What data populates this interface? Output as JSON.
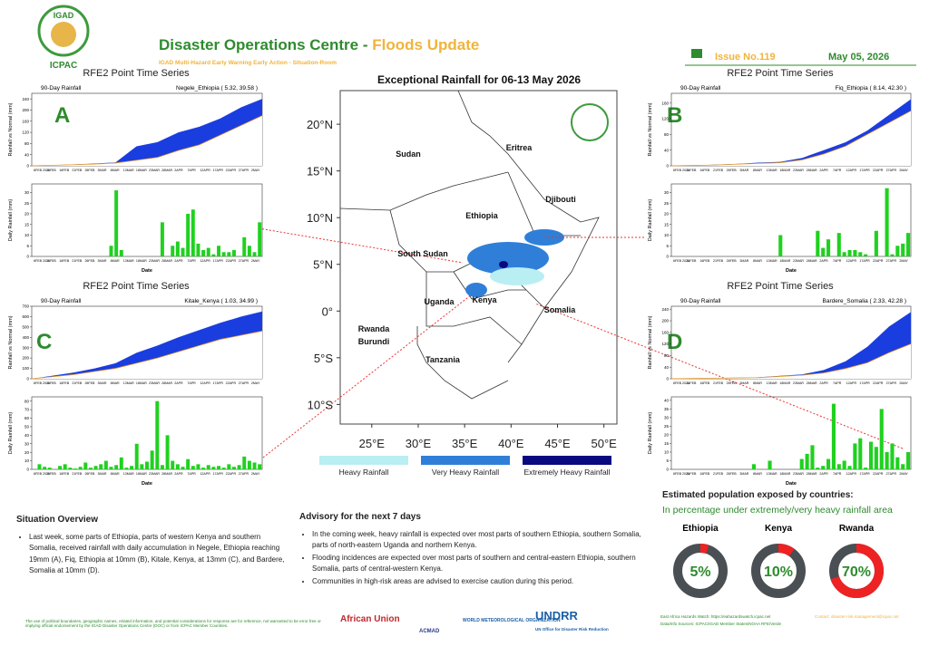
{
  "header": {
    "logo_top": "IGAD",
    "logo_bottom": "ICPAC",
    "title_main": "Disaster Operations Centre - ",
    "title_highlight": "Floods Update",
    "subtitle": "IGAD Multi-Hazard Early Warning Early Action - Situation-Room",
    "issue": "Issue No.119",
    "date": "May 05, 2026"
  },
  "date_ticks": [
    "6FEB 2026",
    "11FEB",
    "16FEB",
    "21FEB",
    "26FEB",
    "3MAR",
    "8MAR",
    "13MAR",
    "18MAR",
    "23MAR",
    "28MAR",
    "2APR",
    "7APR",
    "12APR",
    "17APR",
    "22APR",
    "27APR",
    "2MAY"
  ],
  "panels": [
    {
      "letter": "A",
      "header": "RFE2 Point Time Series",
      "subheader": "90-Day Rainfall",
      "location": "Negele_Ethiopia ( 5.32, 39.58 )",
      "cum_ylabel": "Rainfall vs Normal (mm)",
      "cum_ylim": [
        0,
        260
      ],
      "cum_yticks": [
        0,
        40,
        80,
        120,
        160,
        200,
        240
      ],
      "observed": [
        0,
        2,
        5,
        8,
        12,
        70,
        85,
        120,
        140,
        170,
        210,
        240
      ],
      "normal": [
        0,
        2,
        4,
        6,
        10,
        20,
        30,
        55,
        75,
        110,
        145,
        180
      ],
      "daily_ylabel": "Daily Rainfall (mm)",
      "daily_ylim": [
        0,
        34
      ],
      "daily_yticks": [
        0,
        5,
        10,
        15,
        20,
        25,
        30
      ],
      "daily": [
        0,
        0,
        0,
        0,
        0,
        0,
        0,
        0,
        0,
        0,
        0,
        0,
        0,
        0,
        0,
        5,
        31,
        3,
        0,
        0,
        0,
        0,
        0,
        0,
        0,
        16,
        0,
        5,
        7,
        4,
        20,
        22,
        6,
        3,
        4,
        1,
        5,
        2,
        2,
        3,
        0,
        9,
        5,
        2,
        16
      ],
      "xlabel": "Date"
    },
    {
      "letter": "B",
      "header": "RFE2 Point Time Series",
      "subheader": "90-Day Rainfall",
      "location": "Fiq_Ethiopia ( 8.14, 42.30 )",
      "cum_ylabel": "Rainfall vs Normal (mm)",
      "cum_ylim": [
        0,
        185
      ],
      "cum_yticks": [
        0,
        40,
        80,
        120,
        160
      ],
      "observed": [
        0,
        1,
        3,
        5,
        8,
        10,
        20,
        40,
        60,
        90,
        130,
        170
      ],
      "normal": [
        0,
        1,
        2,
        4,
        6,
        8,
        15,
        30,
        50,
        80,
        110,
        140
      ],
      "daily_ylabel": "Daily Rainfall (mm)",
      "daily_ylim": [
        0,
        34
      ],
      "daily_yticks": [
        0,
        5,
        10,
        15,
        20,
        25,
        30
      ],
      "daily": [
        0,
        0,
        0,
        0,
        0,
        0,
        0,
        0,
        0,
        0,
        0,
        0,
        0,
        0,
        0,
        0,
        0,
        0,
        0,
        0,
        10,
        0,
        0,
        0,
        0,
        0,
        0,
        12,
        4,
        8,
        0,
        11,
        2,
        3,
        3,
        2,
        1,
        0,
        12,
        0,
        32,
        1,
        5,
        6,
        11
      ],
      "xlabel": "Date"
    },
    {
      "letter": "C",
      "header": "RFE2 Point Time Series",
      "subheader": "90-Day Rainfall",
      "location": "Kitale_Kenya ( 1.03, 34.99 )",
      "cum_ylabel": "Rainfall vs Normal (mm)",
      "cum_ylim": [
        0,
        700
      ],
      "cum_yticks": [
        0,
        100,
        200,
        300,
        400,
        500,
        600,
        700
      ],
      "observed": [
        0,
        30,
        60,
        100,
        150,
        250,
        320,
        400,
        470,
        540,
        600,
        650
      ],
      "normal": [
        0,
        20,
        40,
        70,
        100,
        150,
        200,
        260,
        320,
        380,
        420,
        460
      ],
      "daily_ylabel": "Daily Rainfall (mm)",
      "daily_ylim": [
        0,
        85
      ],
      "daily_yticks": [
        0,
        10,
        20,
        30,
        40,
        50,
        60,
        70,
        80
      ],
      "daily": [
        0,
        6,
        3,
        2,
        0,
        4,
        6,
        2,
        1,
        3,
        8,
        2,
        4,
        6,
        10,
        3,
        5,
        14,
        2,
        4,
        30,
        6,
        9,
        22,
        80,
        5,
        40,
        10,
        6,
        3,
        12,
        4,
        6,
        2,
        5,
        3,
        4,
        2,
        6,
        3,
        5,
        15,
        10,
        8,
        6
      ],
      "xlabel": "Date"
    },
    {
      "letter": "D",
      "header": "RFE2 Point Time Series",
      "subheader": "90-Day Rainfall",
      "location": "Bardere_Somalia ( 2.33, 42.28 )",
      "cum_ylabel": "Rainfall vs Normal (mm)",
      "cum_ylim": [
        0,
        250
      ],
      "cum_yticks": [
        0,
        40,
        80,
        120,
        160,
        200,
        240
      ],
      "observed": [
        0,
        1,
        2,
        3,
        5,
        10,
        15,
        30,
        60,
        110,
        180,
        230
      ],
      "normal": [
        0,
        1,
        2,
        3,
        4,
        8,
        12,
        20,
        35,
        55,
        90,
        120
      ],
      "daily_ylabel": "Daily Rainfall (mm)",
      "daily_ylim": [
        0,
        42
      ],
      "daily_yticks": [
        0,
        5,
        10,
        15,
        20,
        25,
        30,
        35,
        40
      ],
      "daily": [
        0,
        0,
        0,
        0,
        0,
        0,
        0,
        0,
        0,
        0,
        0,
        0,
        0,
        0,
        0,
        3,
        0,
        0,
        5,
        0,
        0,
        0,
        0,
        0,
        6,
        9,
        14,
        1,
        2,
        6,
        38,
        3,
        5,
        2,
        15,
        18,
        1,
        16,
        13,
        35,
        10,
        15,
        7,
        3,
        10
      ],
      "xlabel": "Date"
    }
  ],
  "map": {
    "title": "Exceptional Rainfall for 06-13 May 2026",
    "xlim": [
      21.6,
      51.4
    ],
    "ylim": [
      -12.1,
      23.6
    ],
    "yticks": [
      {
        "value": 20,
        "label": "20°N"
      },
      {
        "value": 15,
        "label": "15°N"
      },
      {
        "value": 10,
        "label": "10°N"
      },
      {
        "value": 5,
        "label": "5°N"
      },
      {
        "value": 0,
        "label": "0°"
      },
      {
        "value": -5,
        "label": "5°S"
      },
      {
        "value": -10,
        "label": "10°S"
      }
    ],
    "xticks": [
      {
        "value": 25,
        "label": "25°E"
      },
      {
        "value": 30,
        "label": "30°E"
      },
      {
        "value": 35,
        "label": "35°E"
      },
      {
        "value": 40,
        "label": "40°E"
      },
      {
        "value": 45,
        "label": "45°E"
      },
      {
        "value": 50,
        "label": "50°E"
      }
    ],
    "countries": [
      "Sudan",
      "Eritrea",
      "Djibouti",
      "Ethiopia",
      "South Sudan",
      "Somalia",
      "Uganda",
      "Kenya",
      "Rwanda",
      "Burundi",
      "Tanzania"
    ],
    "legend": [
      {
        "name": "Heavy Rainfall",
        "color": "#b9eef3"
      },
      {
        "name": "Very Heavy Rainfall",
        "color": "#2f7fd8"
      },
      {
        "name": "Extremely Heavy Rainfall",
        "color": "#0a0a80"
      }
    ]
  },
  "situation": {
    "title": "Situation Overview",
    "bullets": [
      "Last week, some parts of Ethiopia, parts of western Kenya and southern Somalia, received rainfall with daily accumulation in Negele, Ethiopia reaching 19mm (A), Fiq, Ethiopia at 10mm (B), Kitale, Kenya, at 13mm (C), and Bardere, Somalia at 10mm (D)."
    ]
  },
  "advisory": {
    "title": "Advisory for the next 7 days",
    "bullets": [
      "In the coming week, heavy rainfall is expected over most parts of southern Ethiopia, southern Somalia, parts of north-eastern Uganda and northern Kenya.",
      "Flooding incidences are expected over most parts of southern and central-eastern Ethiopia, southern Somalia, parts of central-western Kenya.",
      "Communities in high-risk areas are advised to exercise caution during this period."
    ]
  },
  "chart_data": {
    "type": "donut",
    "title": "Estimated population exposed by countries:",
    "subtitle": "In percentage under extremely/very heavy rainfall area",
    "categories": [
      "Ethiopia",
      "Kenya",
      "Rwanda"
    ],
    "values": [
      5,
      10,
      70
    ],
    "value_labels": [
      "5%",
      "10%",
      "70%"
    ],
    "color": "#ee2222",
    "ylim": [
      0,
      100
    ]
  },
  "footer": {
    "disclaimer": "The use of political boundaries, geographic names, related information, and potential considerations for response are for reference, not warranted to be error free or implying official endorsement by the IGAD Disaster Operations Centre (DOC) or from ICPAC Member Countries.",
    "logos": [
      "African Union",
      "ACMAD",
      "WORLD METEOROLOGICAL ORGANIZATION",
      "UNDRR",
      "UN Office for Disaster Risk Reduction"
    ],
    "links": [
      "East Africa Hazards Watch: https://eahazardswatch.icpac.net",
      "Data/Info Sources:  ICPAC/IGAD Member States/NOAA RFE/Verde"
    ],
    "contact": "Contact: disaster-risk-management@icpac.net"
  }
}
